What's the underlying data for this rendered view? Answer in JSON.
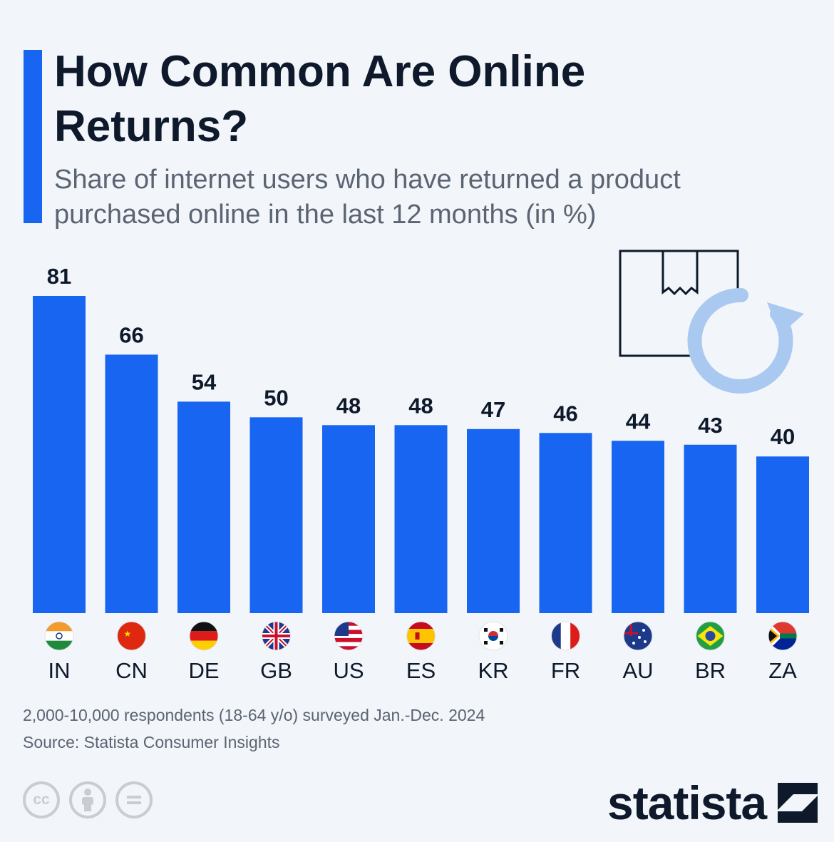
{
  "header": {
    "title": "How Common Are Online Returns?",
    "subtitle": "Share of internet users who have returned a product purchased online in the last 12 months (in %)"
  },
  "colors": {
    "bar": "#1865f2",
    "accent": "#1865f2",
    "text": "#0e1a2b",
    "muted": "#5b6472"
  },
  "chart_data": {
    "type": "bar",
    "title": "How Common Are Online Returns?",
    "subtitle": "Share of internet users who have returned a product purchased online in the last 12 months (in %)",
    "categories": [
      "IN",
      "CN",
      "DE",
      "GB",
      "US",
      "ES",
      "KR",
      "FR",
      "AU",
      "BR",
      "ZA"
    ],
    "values": [
      81,
      66,
      54,
      50,
      48,
      48,
      47,
      46,
      44,
      43,
      40
    ],
    "flags": [
      "india-flag-icon",
      "china-flag-icon",
      "germany-flag-icon",
      "uk-flag-icon",
      "usa-flag-icon",
      "spain-flag-icon",
      "south-korea-flag-icon",
      "france-flag-icon",
      "australia-flag-icon",
      "brazil-flag-icon",
      "south-africa-flag-icon"
    ],
    "ylim": [
      0,
      81
    ],
    "grid": false,
    "xlabel": "",
    "ylabel": ""
  },
  "footer": {
    "note": "2,000-10,000 respondents (18-64 y/o) surveyed Jan.-Dec. 2024",
    "source": "Source: Statista Consumer Insights",
    "license_icons": [
      "cc-icon",
      "attribution-icon",
      "no-derivatives-icon"
    ],
    "license_cc": "cc",
    "brand": "statista"
  },
  "illustration": {
    "icon": "package-return-icon"
  }
}
